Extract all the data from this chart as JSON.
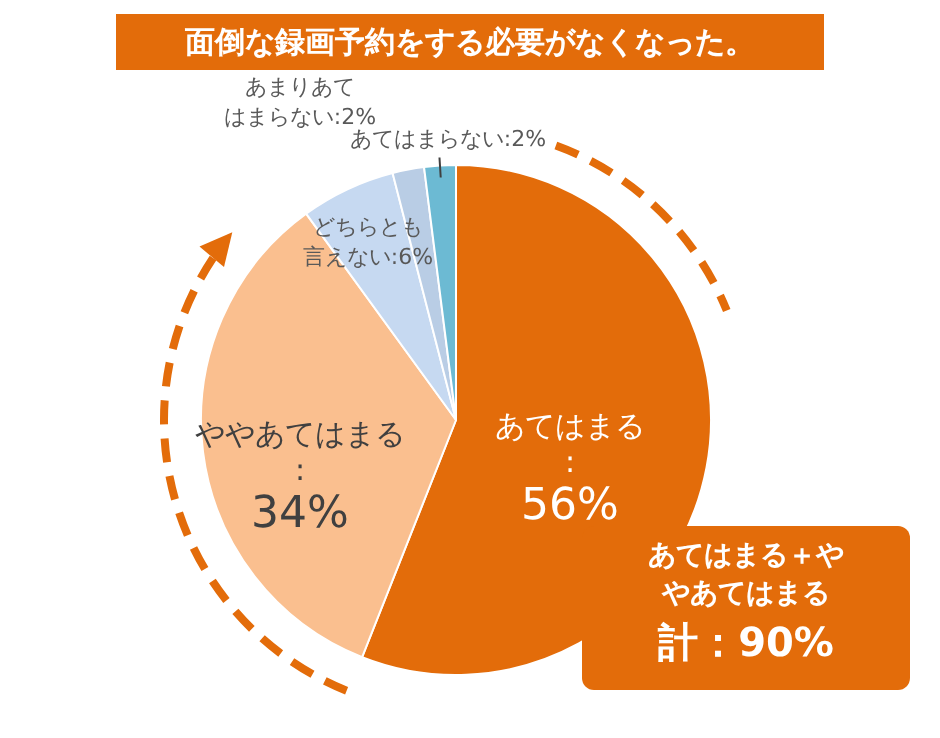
{
  "chart_data": {
    "type": "pie",
    "title": "面倒な録画予約をする必要がなくなった。",
    "categories": [
      "あてはまる",
      "ややあてはまる",
      "どちらとも言えない",
      "あまりあてはまらない",
      "あてはまらない"
    ],
    "values": [
      56,
      34,
      6,
      2,
      2
    ],
    "colors": [
      "#e36c0a",
      "#fabf8f",
      "#c6d9f1",
      "#b9cde5",
      "#6cbad3"
    ],
    "value_labels": [
      ":56%",
      ":34%",
      ":6%",
      ":2%",
      ":2%"
    ],
    "legend": false,
    "annotations": [
      "あてはまる＋ややあてはまる",
      "計：90%"
    ]
  }
}
